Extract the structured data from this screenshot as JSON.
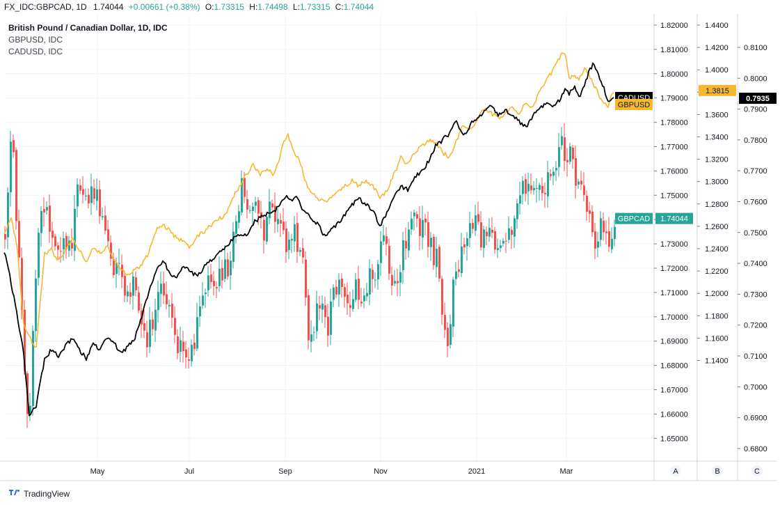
{
  "header": {
    "symbol": "FX_IDC:GBPCAD, 1D",
    "last": "1.74044",
    "change": "+0.00661 (+0.38%)",
    "o_label": "O:",
    "o_value": "1.73315",
    "h_label": "H:",
    "h_value": "1.74498",
    "l_label": "L:",
    "l_value": "1.73315",
    "c_label": "C:",
    "c_value": "1.74044"
  },
  "legend": {
    "main": "British Pound / Canadian Dollar, 1D, IDC",
    "second": "GBPUSD, IDC",
    "third": "CADUSD, IDC"
  },
  "brand": {
    "name": "TradingView",
    "icon": "tradingview-logo-icon"
  },
  "colors": {
    "up": "#26a69a",
    "down": "#ef5350",
    "gbpusd": "#f7b731",
    "cadusd": "#000000",
    "grid": "#f0f3fa",
    "axis_line": "#d1d4dc"
  },
  "chart_data": {
    "type": "candlestick+line",
    "x_labels": [
      "May",
      "Jul",
      "Sep",
      "Nov",
      "2021",
      "Mar"
    ],
    "scale_buttons": [
      "A",
      "B",
      "C"
    ],
    "axes": {
      "A": {
        "series": "GBPCAD",
        "range": [
          1.645,
          1.825
        ],
        "ticks": [
          "1.82000",
          "1.81000",
          "1.80000",
          "1.79000",
          "1.78000",
          "1.77000",
          "1.76000",
          "1.75000",
          "1.74000",
          "1.73000",
          "1.72000",
          "1.71000",
          "1.70000",
          "1.69000",
          "1.68000",
          "1.67000",
          "1.66000",
          "1.65000"
        ]
      },
      "B": {
        "series": "GBPUSD",
        "range": [
          1.13,
          1.45
        ],
        "ticks": [
          "1.4400",
          "1.4200",
          "1.4000",
          "1.3800",
          "1.3600",
          "1.3400",
          "1.3200",
          "1.3000",
          "1.2800",
          "1.2600",
          "1.2400",
          "1.2200",
          "1.2000",
          "1.1800",
          "1.1600",
          "1.1400"
        ]
      },
      "C": {
        "series": "CADUSD",
        "range": [
          0.677,
          0.818
        ],
        "ticks": [
          "0.8100",
          "0.8000",
          "0.7900",
          "0.7800",
          "0.7700",
          "0.7600",
          "0.7500",
          "0.7400",
          "0.7300",
          "0.7200",
          "0.7100",
          "0.7000",
          "0.6900",
          "0.6800"
        ]
      }
    },
    "badges": [
      {
        "series": "GBPCAD",
        "label": "GBPCAD",
        "value": "1.74044",
        "color": "#26a69a",
        "text_color": "#ffffff"
      },
      {
        "series": "GBPUSD",
        "label": "GBPUSD",
        "value": "1.3815",
        "color": "#f7b731",
        "text_color": "#131722"
      },
      {
        "series": "CADUSD",
        "label": "CADUSD",
        "value": "0.7935",
        "color": "#000000",
        "text_color": "#ffffff"
      }
    ],
    "gbpcad_close_anchors": [
      [
        0,
        1.735
      ],
      [
        10,
        1.781
      ],
      [
        15,
        1.745
      ],
      [
        22,
        1.711
      ],
      [
        30,
        1.661
      ],
      [
        36,
        1.662
      ],
      [
        42,
        1.706
      ],
      [
        50,
        1.745
      ],
      [
        60,
        1.745
      ],
      [
        70,
        1.729
      ],
      [
        80,
        1.731
      ],
      [
        95,
        1.726
      ],
      [
        105,
        1.761
      ],
      [
        115,
        1.745
      ],
      [
        125,
        1.752
      ],
      [
        135,
        1.747
      ],
      [
        145,
        1.739
      ],
      [
        155,
        1.718
      ],
      [
        165,
        1.726
      ],
      [
        175,
        1.706
      ],
      [
        185,
        1.716
      ],
      [
        195,
        1.695
      ],
      [
        205,
        1.691
      ],
      [
        215,
        1.703
      ],
      [
        225,
        1.711
      ],
      [
        235,
        1.704
      ],
      [
        245,
        1.686
      ],
      [
        255,
        1.692
      ],
      [
        262,
        1.684
      ],
      [
        272,
        1.691
      ],
      [
        282,
        1.706
      ],
      [
        292,
        1.716
      ],
      [
        302,
        1.711
      ],
      [
        312,
        1.718
      ],
      [
        322,
        1.721
      ],
      [
        330,
        1.736
      ],
      [
        340,
        1.755
      ],
      [
        352,
        1.744
      ],
      [
        362,
        1.751
      ],
      [
        372,
        1.731
      ],
      [
        380,
        1.746
      ],
      [
        388,
        1.741
      ],
      [
        396,
        1.736
      ],
      [
        404,
        1.731
      ],
      [
        412,
        1.736
      ],
      [
        420,
        1.731
      ],
      [
        428,
        1.721
      ],
      [
        436,
        1.689
      ],
      [
        444,
        1.697
      ],
      [
        454,
        1.709
      ],
      [
        464,
        1.696
      ],
      [
        474,
        1.711
      ],
      [
        484,
        1.716
      ],
      [
        494,
        1.706
      ],
      [
        504,
        1.711
      ],
      [
        514,
        1.701
      ],
      [
        524,
        1.721
      ],
      [
        534,
        1.719
      ],
      [
        542,
        1.733
      ],
      [
        550,
        1.723
      ],
      [
        560,
        1.711
      ],
      [
        570,
        1.726
      ],
      [
        580,
        1.736
      ],
      [
        590,
        1.741
      ],
      [
        600,
        1.736
      ],
      [
        610,
        1.731
      ],
      [
        620,
        1.723
      ],
      [
        628,
        1.701
      ],
      [
        636,
        1.691
      ],
      [
        644,
        1.712
      ],
      [
        654,
        1.726
      ],
      [
        664,
        1.736
      ],
      [
        674,
        1.741
      ],
      [
        684,
        1.731
      ],
      [
        694,
        1.736
      ],
      [
        704,
        1.726
      ],
      [
        714,
        1.729
      ],
      [
        724,
        1.736
      ],
      [
        734,
        1.741
      ],
      [
        742,
        1.751
      ],
      [
        750,
        1.755
      ],
      [
        758,
        1.748
      ],
      [
        766,
        1.751
      ],
      [
        774,
        1.753
      ],
      [
        782,
        1.759
      ],
      [
        790,
        1.763
      ],
      [
        798,
        1.771
      ],
      [
        806,
        1.766
      ],
      [
        812,
        1.771
      ],
      [
        818,
        1.761
      ],
      [
        826,
        1.751
      ],
      [
        834,
        1.746
      ],
      [
        842,
        1.739
      ],
      [
        850,
        1.731
      ],
      [
        856,
        1.736
      ],
      [
        862,
        1.733
      ],
      [
        866,
        1.729
      ],
      [
        870,
        1.726
      ],
      [
        874,
        1.733
      ],
      [
        877,
        1.74
      ]
    ],
    "gbpusd_anchors": [
      [
        0,
        1.255
      ],
      [
        10,
        1.266
      ],
      [
        18,
        1.245
      ],
      [
        28,
        1.171
      ],
      [
        36,
        1.161
      ],
      [
        46,
        1.151
      ],
      [
        58,
        1.236
      ],
      [
        68,
        1.239
      ],
      [
        78,
        1.229
      ],
      [
        88,
        1.239
      ],
      [
        98,
        1.249
      ],
      [
        108,
        1.239
      ],
      [
        118,
        1.229
      ],
      [
        128,
        1.241
      ],
      [
        138,
        1.236
      ],
      [
        148,
        1.241
      ],
      [
        158,
        1.231
      ],
      [
        168,
        1.221
      ],
      [
        178,
        1.216
      ],
      [
        188,
        1.221
      ],
      [
        198,
        1.226
      ],
      [
        208,
        1.236
      ],
      [
        218,
        1.256
      ],
      [
        228,
        1.261
      ],
      [
        238,
        1.256
      ],
      [
        248,
        1.249
      ],
      [
        258,
        1.246
      ],
      [
        268,
        1.241
      ],
      [
        278,
        1.251
      ],
      [
        288,
        1.256
      ],
      [
        298,
        1.261
      ],
      [
        308,
        1.266
      ],
      [
        318,
        1.271
      ],
      [
        328,
        1.285
      ],
      [
        338,
        1.296
      ],
      [
        348,
        1.306
      ],
      [
        358,
        1.316
      ],
      [
        368,
        1.306
      ],
      [
        378,
        1.311
      ],
      [
        388,
        1.306
      ],
      [
        396,
        1.321
      ],
      [
        402,
        1.336
      ],
      [
        408,
        1.341
      ],
      [
        416,
        1.326
      ],
      [
        424,
        1.321
      ],
      [
        432,
        1.301
      ],
      [
        440,
        1.291
      ],
      [
        450,
        1.286
      ],
      [
        460,
        1.281
      ],
      [
        470,
        1.286
      ],
      [
        480,
        1.291
      ],
      [
        490,
        1.296
      ],
      [
        500,
        1.301
      ],
      [
        510,
        1.296
      ],
      [
        520,
        1.301
      ],
      [
        530,
        1.296
      ],
      [
        540,
        1.286
      ],
      [
        550,
        1.291
      ],
      [
        560,
        1.306
      ],
      [
        570,
        1.321
      ],
      [
        580,
        1.316
      ],
      [
        590,
        1.326
      ],
      [
        600,
        1.331
      ],
      [
        610,
        1.336
      ],
      [
        620,
        1.336
      ],
      [
        630,
        1.326
      ],
      [
        640,
        1.321
      ],
      [
        650,
        1.336
      ],
      [
        660,
        1.351
      ],
      [
        670,
        1.346
      ],
      [
        680,
        1.356
      ],
      [
        690,
        1.366
      ],
      [
        700,
        1.361
      ],
      [
        710,
        1.356
      ],
      [
        720,
        1.361
      ],
      [
        730,
        1.366
      ],
      [
        740,
        1.361
      ],
      [
        750,
        1.371
      ],
      [
        760,
        1.366
      ],
      [
        770,
        1.381
      ],
      [
        780,
        1.391
      ],
      [
        790,
        1.401
      ],
      [
        798,
        1.411
      ],
      [
        806,
        1.416
      ],
      [
        812,
        1.391
      ],
      [
        818,
        1.396
      ],
      [
        826,
        1.391
      ],
      [
        834,
        1.401
      ],
      [
        840,
        1.396
      ],
      [
        848,
        1.386
      ],
      [
        856,
        1.376
      ],
      [
        862,
        1.371
      ],
      [
        868,
        1.366
      ],
      [
        872,
        1.376
      ],
      [
        877,
        1.3815
      ]
    ],
    "cadusd_anchors": [
      [
        0,
        0.744
      ],
      [
        8,
        0.736
      ],
      [
        18,
        0.724
      ],
      [
        28,
        0.711
      ],
      [
        36,
        0.691
      ],
      [
        46,
        0.694
      ],
      [
        58,
        0.709
      ],
      [
        68,
        0.712
      ],
      [
        78,
        0.71
      ],
      [
        88,
        0.713
      ],
      [
        98,
        0.716
      ],
      [
        108,
        0.712
      ],
      [
        118,
        0.709
      ],
      [
        128,
        0.714
      ],
      [
        138,
        0.712
      ],
      [
        148,
        0.716
      ],
      [
        158,
        0.714
      ],
      [
        168,
        0.711
      ],
      [
        178,
        0.713
      ],
      [
        188,
        0.716
      ],
      [
        198,
        0.723
      ],
      [
        208,
        0.731
      ],
      [
        218,
        0.737
      ],
      [
        228,
        0.741
      ],
      [
        238,
        0.737
      ],
      [
        248,
        0.735
      ],
      [
        258,
        0.739
      ],
      [
        268,
        0.737
      ],
      [
        278,
        0.736
      ],
      [
        288,
        0.739
      ],
      [
        298,
        0.741
      ],
      [
        308,
        0.743
      ],
      [
        318,
        0.745
      ],
      [
        328,
        0.748
      ],
      [
        338,
        0.749
      ],
      [
        348,
        0.749
      ],
      [
        358,
        0.753
      ],
      [
        368,
        0.755
      ],
      [
        378,
        0.756
      ],
      [
        388,
        0.757
      ],
      [
        396,
        0.759
      ],
      [
        404,
        0.762
      ],
      [
        412,
        0.76
      ],
      [
        420,
        0.762
      ],
      [
        430,
        0.757
      ],
      [
        440,
        0.755
      ],
      [
        450,
        0.753
      ],
      [
        460,
        0.749
      ],
      [
        470,
        0.751
      ],
      [
        480,
        0.753
      ],
      [
        490,
        0.756
      ],
      [
        500,
        0.759
      ],
      [
        510,
        0.761
      ],
      [
        520,
        0.759
      ],
      [
        530,
        0.757
      ],
      [
        540,
        0.752
      ],
      [
        550,
        0.756
      ],
      [
        560,
        0.761
      ],
      [
        570,
        0.765
      ],
      [
        580,
        0.764
      ],
      [
        590,
        0.768
      ],
      [
        600,
        0.77
      ],
      [
        610,
        0.773
      ],
      [
        620,
        0.778
      ],
      [
        630,
        0.78
      ],
      [
        640,
        0.782
      ],
      [
        650,
        0.786
      ],
      [
        660,
        0.781
      ],
      [
        670,
        0.785
      ],
      [
        680,
        0.787
      ],
      [
        690,
        0.789
      ],
      [
        700,
        0.791
      ],
      [
        710,
        0.788
      ],
      [
        720,
        0.79
      ],
      [
        730,
        0.788
      ],
      [
        740,
        0.786
      ],
      [
        750,
        0.784
      ],
      [
        760,
        0.788
      ],
      [
        770,
        0.79
      ],
      [
        780,
        0.792
      ],
      [
        790,
        0.791
      ],
      [
        798,
        0.793
      ],
      [
        806,
        0.796
      ],
      [
        812,
        0.795
      ],
      [
        820,
        0.797
      ],
      [
        828,
        0.794
      ],
      [
        836,
        0.799
      ],
      [
        842,
        0.803
      ],
      [
        848,
        0.805
      ],
      [
        854,
        0.801
      ],
      [
        860,
        0.798
      ],
      [
        866,
        0.794
      ],
      [
        870,
        0.792
      ],
      [
        874,
        0.794
      ],
      [
        877,
        0.7935
      ]
    ]
  }
}
